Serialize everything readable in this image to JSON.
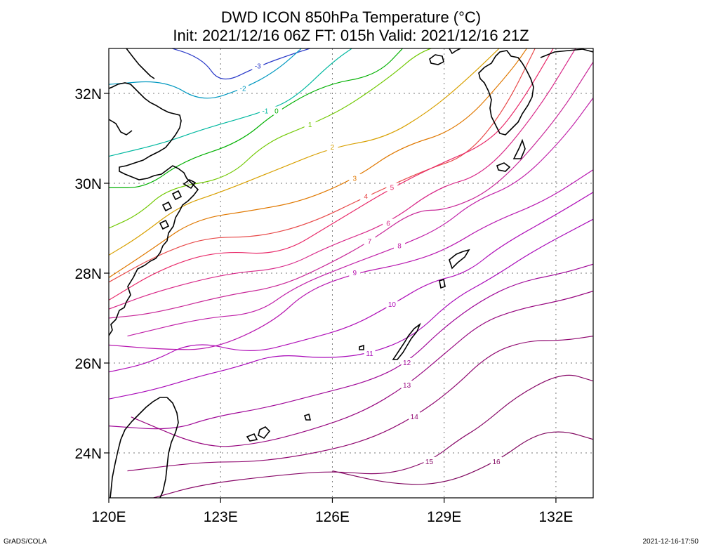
{
  "title": {
    "line1": "DWD ICON 850hPa Temperature (°C)",
    "line2": "Init: 2021/12/16 06Z  FT: 015h  Valid: 2021/12/16 21Z"
  },
  "footer": {
    "left": "GrADS/COLA",
    "right": "2021-12-16-17:50"
  },
  "axes": {
    "lon_range": [
      120,
      133
    ],
    "lat_range": [
      23,
      33
    ],
    "x_ticks": [
      {
        "value": 120,
        "label": "120E"
      },
      {
        "value": 123,
        "label": "123E"
      },
      {
        "value": 126,
        "label": "126E"
      },
      {
        "value": 129,
        "label": "129E"
      },
      {
        "value": 132,
        "label": "132E"
      }
    ],
    "y_ticks": [
      {
        "value": 24,
        "label": "24N"
      },
      {
        "value": 26,
        "label": "26N"
      },
      {
        "value": 28,
        "label": "28N"
      },
      {
        "value": 30,
        "label": "30N"
      },
      {
        "value": 32,
        "label": "32N"
      }
    ]
  },
  "contours": [
    {
      "level": -3,
      "label": "-3",
      "color": "#2838c8",
      "points": [
        [
          121.3,
          33.1
        ],
        [
          122.5,
          32.8
        ],
        [
          123.0,
          32.2
        ],
        [
          124.0,
          32.6
        ],
        [
          125.0,
          32.9
        ],
        [
          125.8,
          33.1
        ]
      ]
    },
    {
      "level": -2,
      "label": "-2",
      "color": "#0098c0",
      "points": [
        [
          120.0,
          32.2
        ],
        [
          121.5,
          32.3
        ],
        [
          122.5,
          31.8
        ],
        [
          123.6,
          32.1
        ],
        [
          124.5,
          32.5
        ],
        [
          125.3,
          33.1
        ]
      ]
    },
    {
      "level": -1,
      "label": "-1",
      "color": "#00b8a0",
      "points": [
        [
          120.0,
          30.6
        ],
        [
          121.5,
          30.9
        ],
        [
          122.5,
          31.2
        ],
        [
          124.2,
          31.6
        ],
        [
          125.0,
          31.9
        ],
        [
          126.0,
          32.7
        ],
        [
          126.7,
          33.1
        ]
      ]
    },
    {
      "level": 0,
      "label": "0",
      "color": "#00b000",
      "points": [
        [
          120.0,
          29.9
        ],
        [
          121.0,
          29.9
        ],
        [
          122.0,
          30.5
        ],
        [
          123.5,
          30.9
        ],
        [
          124.5,
          31.6
        ],
        [
          125.8,
          32.2
        ],
        [
          127.2,
          32.4
        ],
        [
          128.0,
          33.1
        ]
      ]
    },
    {
      "level": 1,
      "label": "1",
      "color": "#70c800",
      "points": [
        [
          120.0,
          29.0
        ],
        [
          120.8,
          29.3
        ],
        [
          121.6,
          29.9
        ],
        [
          123.2,
          30.1
        ],
        [
          124.2,
          30.9
        ],
        [
          125.4,
          31.3
        ],
        [
          126.4,
          31.7
        ],
        [
          127.6,
          32.4
        ],
        [
          128.3,
          32.9
        ],
        [
          129.0,
          33.1
        ]
      ]
    },
    {
      "level": 2,
      "label": "2",
      "color": "#d8a000",
      "points": [
        [
          120.0,
          28.4
        ],
        [
          120.8,
          28.8
        ],
        [
          121.9,
          29.5
        ],
        [
          123.0,
          29.8
        ],
        [
          124.5,
          30.3
        ],
        [
          126.0,
          30.8
        ],
        [
          127.4,
          31.0
        ],
        [
          128.6,
          31.6
        ],
        [
          129.6,
          32.3
        ],
        [
          130.6,
          33.1
        ]
      ]
    },
    {
      "level": 3,
      "label": "3",
      "color": "#e07800",
      "points": [
        [
          120.0,
          27.9
        ],
        [
          121.1,
          28.5
        ],
        [
          122.3,
          29.2
        ],
        [
          123.9,
          29.4
        ],
        [
          125.2,
          29.6
        ],
        [
          126.6,
          30.1
        ],
        [
          127.8,
          30.8
        ],
        [
          129.4,
          31.2
        ],
        [
          130.8,
          32.5
        ],
        [
          131.3,
          33.1
        ]
      ]
    },
    {
      "level": 4,
      "label": "4",
      "color": "#e84848",
      "points": [
        [
          120.0,
          27.8
        ],
        [
          121.3,
          28.4
        ],
        [
          122.6,
          28.8
        ],
        [
          124.0,
          28.8
        ],
        [
          125.4,
          29.1
        ],
        [
          126.9,
          29.7
        ],
        [
          128.5,
          30.3
        ],
        [
          129.6,
          30.6
        ],
        [
          130.6,
          31.6
        ],
        [
          131.5,
          33.1
        ]
      ]
    },
    {
      "level": 5,
      "label": "5",
      "color": "#e82868",
      "points": [
        [
          120.0,
          27.4
        ],
        [
          121.4,
          28.1
        ],
        [
          122.9,
          28.5
        ],
        [
          124.6,
          28.4
        ],
        [
          126.0,
          29.1
        ],
        [
          127.6,
          29.9
        ],
        [
          128.8,
          30.4
        ],
        [
          130.2,
          30.9
        ],
        [
          131.0,
          31.7
        ],
        [
          132.0,
          33.1
        ]
      ]
    },
    {
      "level": 6,
      "label": "6",
      "color": "#d82888",
      "points": [
        [
          120.0,
          27.2
        ],
        [
          121.3,
          27.6
        ],
        [
          123.2,
          28.0
        ],
        [
          124.7,
          28.1
        ],
        [
          125.9,
          28.6
        ],
        [
          127.5,
          29.1
        ],
        [
          128.8,
          29.9
        ],
        [
          130.1,
          30.2
        ],
        [
          131.5,
          31.6
        ],
        [
          132.6,
          33.1
        ]
      ]
    },
    {
      "level": 7,
      "label": "7",
      "color": "#c82898",
      "points": [
        [
          120.0,
          27.0
        ],
        [
          121.2,
          27.1
        ],
        [
          123.1,
          27.5
        ],
        [
          124.6,
          27.7
        ],
        [
          125.9,
          28.2
        ],
        [
          127.0,
          28.7
        ],
        [
          128.2,
          29.4
        ],
        [
          129.1,
          29.4
        ],
        [
          130.4,
          29.9
        ],
        [
          132.0,
          31.4
        ],
        [
          133.0,
          32.7
        ]
      ]
    },
    {
      "level": 8,
      "label": "8",
      "color": "#c020a8",
      "points": [
        [
          120.5,
          26.6
        ],
        [
          122.5,
          27.0
        ],
        [
          124.0,
          27.1
        ],
        [
          125.0,
          27.7
        ],
        [
          126.5,
          28.2
        ],
        [
          127.8,
          28.6
        ],
        [
          128.9,
          29.0
        ],
        [
          129.8,
          29.6
        ],
        [
          131.0,
          30.0
        ],
        [
          132.2,
          31.0
        ],
        [
          133.0,
          31.9
        ]
      ]
    },
    {
      "level": 9,
      "label": "9",
      "color": "#b818b0",
      "points": [
        [
          120.0,
          26.4
        ],
        [
          121.5,
          26.3
        ],
        [
          122.8,
          26.3
        ],
        [
          124.4,
          26.9
        ],
        [
          125.3,
          27.6
        ],
        [
          126.6,
          28.0
        ],
        [
          127.9,
          28.2
        ],
        [
          129.0,
          28.5
        ],
        [
          130.2,
          29.1
        ],
        [
          131.7,
          29.6
        ],
        [
          133.0,
          30.3
        ]
      ]
    },
    {
      "level": 10,
      "label": "10",
      "color": "#b010b8",
      "points": [
        [
          120.0,
          25.8
        ],
        [
          121.1,
          26.0
        ],
        [
          122.3,
          26.5
        ],
        [
          123.8,
          26.2
        ],
        [
          125.2,
          26.5
        ],
        [
          126.5,
          26.8
        ],
        [
          127.6,
          27.3
        ],
        [
          128.6,
          27.8
        ],
        [
          129.6,
          28.0
        ],
        [
          130.5,
          28.6
        ],
        [
          132.0,
          29.3
        ],
        [
          133.0,
          29.8
        ]
      ]
    },
    {
      "level": 11,
      "label": "11",
      "color": "#a808b8",
      "points": [
        [
          120.0,
          25.2
        ],
        [
          121.2,
          25.4
        ],
        [
          122.4,
          25.7
        ],
        [
          123.4,
          25.9
        ],
        [
          124.5,
          26.2
        ],
        [
          125.8,
          26.1
        ],
        [
          127.0,
          26.2
        ],
        [
          128.2,
          26.6
        ],
        [
          129.2,
          27.4
        ],
        [
          130.3,
          27.9
        ],
        [
          131.4,
          28.5
        ],
        [
          133.0,
          29.2
        ]
      ]
    },
    {
      "level": 12,
      "label": "12",
      "color": "#a00898",
      "points": [
        [
          120.0,
          24.6
        ],
        [
          121.7,
          24.5
        ],
        [
          122.8,
          24.8
        ],
        [
          124.2,
          25.0
        ],
        [
          125.6,
          25.3
        ],
        [
          127.0,
          25.6
        ],
        [
          128.0,
          26.0
        ],
        [
          129.0,
          26.8
        ],
        [
          130.0,
          27.4
        ],
        [
          131.0,
          27.8
        ],
        [
          132.2,
          28.0
        ],
        [
          133.0,
          28.2
        ]
      ]
    },
    {
      "level": 13,
      "label": "13",
      "color": "#980880",
      "points": [
        [
          120.6,
          24.8
        ],
        [
          122.6,
          24.1
        ],
        [
          124.0,
          24.2
        ],
        [
          125.4,
          24.5
        ],
        [
          126.8,
          24.9
        ],
        [
          128.0,
          25.5
        ],
        [
          129.0,
          26.2
        ],
        [
          130.0,
          26.9
        ],
        [
          131.0,
          27.2
        ],
        [
          132.2,
          27.4
        ],
        [
          133.0,
          27.6
        ]
      ]
    },
    {
      "level": 14,
      "label": "14",
      "color": "#900870",
      "points": [
        [
          120.5,
          23.6
        ],
        [
          122.5,
          23.8
        ],
        [
          124.0,
          23.8
        ],
        [
          125.6,
          24.0
        ],
        [
          127.0,
          24.3
        ],
        [
          128.2,
          24.8
        ],
        [
          129.2,
          25.4
        ],
        [
          130.2,
          26.2
        ],
        [
          131.2,
          26.5
        ],
        [
          132.2,
          26.5
        ],
        [
          133.0,
          26.6
        ]
      ]
    },
    {
      "level": 15,
      "label": "15",
      "color": "#880868",
      "points": [
        [
          121.2,
          23.0
        ],
        [
          122.5,
          23.3
        ],
        [
          124.5,
          23.5
        ],
        [
          126.0,
          23.6
        ],
        [
          127.4,
          23.5
        ],
        [
          128.6,
          23.8
        ],
        [
          129.4,
          24.3
        ],
        [
          130.0,
          24.6
        ],
        [
          131.0,
          25.3
        ],
        [
          132.2,
          25.8
        ],
        [
          133.0,
          25.6
        ]
      ]
    },
    {
      "level": 16,
      "label": "16",
      "color": "#800860",
      "points": [
        [
          126.0,
          23.6
        ],
        [
          127.6,
          23.3
        ],
        [
          129.0,
          23.3
        ],
        [
          130.4,
          23.8
        ],
        [
          131.4,
          24.4
        ],
        [
          132.2,
          24.5
        ],
        [
          133.0,
          24.3
        ]
      ]
    }
  ]
}
